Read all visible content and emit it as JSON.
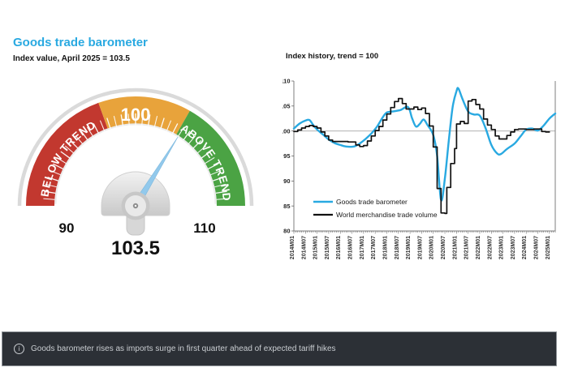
{
  "footer": {
    "icon_glyph": "i",
    "text": "Goods barometer rises as imports surge in first quarter ahead of expected tariff hikes",
    "background": "#2c3036",
    "text_color": "#c9cdd1"
  },
  "colors": {
    "accent_blue": "#29a9e1",
    "gauge_red": "#c2382f",
    "gauge_amber": "#e8a33b",
    "gauge_green": "#4ba344",
    "needle_blue": "#92c9ec",
    "series_black": "#111111"
  },
  "chart_data": [
    {
      "type": "gauge",
      "title": "Goods trade barometer",
      "subtitle": "Index value, April 2025 = 103.5",
      "min": 90,
      "max": 110,
      "value": 103.5,
      "value_label": "103.5",
      "min_label": "90",
      "max_label": "110",
      "top_label": "100",
      "needle_color": "#92c9ec",
      "zones": [
        {
          "label": "BELOW TREND",
          "from": 90,
          "to": 97.8,
          "color": "#c2382f"
        },
        {
          "label": "100",
          "from": 97.8,
          "to": 103.3,
          "color": "#e8a33b"
        },
        {
          "label": "ABOVE TREND",
          "from": 103.3,
          "to": 110,
          "color": "#4ba344"
        }
      ]
    },
    {
      "type": "line",
      "title": "Index history, trend = 100",
      "ylim": [
        80,
        110
      ],
      "yticks": [
        80,
        85,
        90,
        95,
        100,
        105,
        110
      ],
      "reference_line": 100,
      "x_min": "2014M01",
      "x_max": "2025M04",
      "x_tick_labels": [
        "2014M01",
        "2014M07",
        "2015M01",
        "2015M07",
        "2016M01",
        "2016M07",
        "2017M01",
        "2017M07",
        "2018M01",
        "2018M07",
        "2019M01",
        "2019M07",
        "2020M01",
        "2020M07",
        "2021M01",
        "2021M07",
        "2022M01",
        "2022M07",
        "2023M01",
        "2023M07",
        "2024M01",
        "2024M07",
        "2025M01"
      ],
      "legend_position": "lower-left",
      "series": [
        {
          "name": "Goods trade barometer",
          "color": "#29a9e1",
          "line": "smooth",
          "points": [
            [
              "2014M01",
              100.5
            ],
            [
              "2014M04",
              101.5
            ],
            [
              "2014M07",
              102.1
            ],
            [
              "2014M09",
              102.2
            ],
            [
              "2014M11",
              101.2
            ],
            [
              "2015M01",
              100.3
            ],
            [
              "2015M04",
              99.3
            ],
            [
              "2015M07",
              98.3
            ],
            [
              "2015M10",
              97.6
            ],
            [
              "2016M01",
              97.2
            ],
            [
              "2016M04",
              96.9
            ],
            [
              "2016M08",
              96.9
            ],
            [
              "2016M11",
              97.5
            ],
            [
              "2017M02",
              98.4
            ],
            [
              "2017M05",
              99.5
            ],
            [
              "2017M08",
              100.9
            ],
            [
              "2017M11",
              102.8
            ],
            [
              "2018M01",
              103.7
            ],
            [
              "2018M04",
              103.9
            ],
            [
              "2018M08",
              104.2
            ],
            [
              "2018M12",
              104.8
            ],
            [
              "2019M02",
              102.6
            ],
            [
              "2019M04",
              100.9
            ],
            [
              "2019M06",
              101.4
            ],
            [
              "2019M08",
              102.3
            ],
            [
              "2019M10",
              101.2
            ],
            [
              "2020M01",
              99.2
            ],
            [
              "2020M03",
              95.0
            ],
            [
              "2020M05",
              86.2
            ],
            [
              "2020M07",
              90.5
            ],
            [
              "2020M09",
              98.0
            ],
            [
              "2020M11",
              104.8
            ],
            [
              "2021M01",
              108.0
            ],
            [
              "2021M02",
              108.5
            ],
            [
              "2021M04",
              106.5
            ],
            [
              "2021M07",
              103.9
            ],
            [
              "2021M10",
              103.3
            ],
            [
              "2022M01",
              103.1
            ],
            [
              "2022M04",
              100.6
            ],
            [
              "2022M07",
              97.2
            ],
            [
              "2022M10",
              95.5
            ],
            [
              "2022M12",
              95.4
            ],
            [
              "2023M03",
              96.4
            ],
            [
              "2023M07",
              97.5
            ],
            [
              "2023M10",
              98.9
            ],
            [
              "2024M01",
              100.3
            ],
            [
              "2024M04",
              100.5
            ],
            [
              "2024M07",
              100.1
            ],
            [
              "2024M10",
              101.1
            ],
            [
              "2025M01",
              102.5
            ],
            [
              "2025M04",
              103.5
            ]
          ]
        },
        {
          "name": "World merchandise trade volume",
          "color": "#111111",
          "line": "step",
          "points": [
            [
              "2014M01",
              99.9
            ],
            [
              "2014M03",
              100.2
            ],
            [
              "2014M05",
              100.6
            ],
            [
              "2014M07",
              100.9
            ],
            [
              "2014M09",
              101.1
            ],
            [
              "2014M11",
              100.9
            ],
            [
              "2015M01",
              100.6
            ],
            [
              "2015M03",
              99.8
            ],
            [
              "2015M05",
              99.0
            ],
            [
              "2015M07",
              98.2
            ],
            [
              "2015M09",
              97.9
            ],
            [
              "2016M01",
              97.9
            ],
            [
              "2016M05",
              97.8
            ],
            [
              "2016M09",
              97.2
            ],
            [
              "2016M11",
              96.9
            ],
            [
              "2017M01",
              97.1
            ],
            [
              "2017M03",
              98.0
            ],
            [
              "2017M05",
              99.0
            ],
            [
              "2017M07",
              100.1
            ],
            [
              "2017M09",
              100.9
            ],
            [
              "2017M11",
              102.2
            ],
            [
              "2018M01",
              103.4
            ],
            [
              "2018M03",
              104.7
            ],
            [
              "2018M05",
              105.9
            ],
            [
              "2018M07",
              106.5
            ],
            [
              "2018M09",
              105.5
            ],
            [
              "2018M11",
              104.4
            ],
            [
              "2019M01",
              104.4
            ],
            [
              "2019M03",
              104.8
            ],
            [
              "2019M05",
              104.3
            ],
            [
              "2019M07",
              104.6
            ],
            [
              "2019M09",
              103.5
            ],
            [
              "2019M11",
              101.0
            ],
            [
              "2020M01",
              96.8
            ],
            [
              "2020M03",
              88.5
            ],
            [
              "2020M05",
              83.6
            ],
            [
              "2020M07",
              83.5
            ],
            [
              "2020M08",
              88.7
            ],
            [
              "2020M10",
              93.5
            ],
            [
              "2020M12",
              96.5
            ],
            [
              "2021M01",
              101.4
            ],
            [
              "2021M03",
              101.9
            ],
            [
              "2021M05",
              101.5
            ],
            [
              "2021M07",
              106.0
            ],
            [
              "2021M09",
              106.3
            ],
            [
              "2021M11",
              105.3
            ],
            [
              "2022M01",
              104.4
            ],
            [
              "2022M03",
              102.4
            ],
            [
              "2022M05",
              101.2
            ],
            [
              "2022M07",
              100.3
            ],
            [
              "2022M09",
              99.0
            ],
            [
              "2022M11",
              98.4
            ],
            [
              "2023M03",
              99.1
            ],
            [
              "2023M05",
              99.8
            ],
            [
              "2023M07",
              100.3
            ],
            [
              "2023M09",
              100.4
            ],
            [
              "2024M01",
              100.3
            ],
            [
              "2024M05",
              100.4
            ],
            [
              "2024M09",
              99.9
            ],
            [
              "2024M11",
              99.8
            ],
            [
              "2025M01",
              99.8
            ]
          ]
        }
      ]
    }
  ]
}
